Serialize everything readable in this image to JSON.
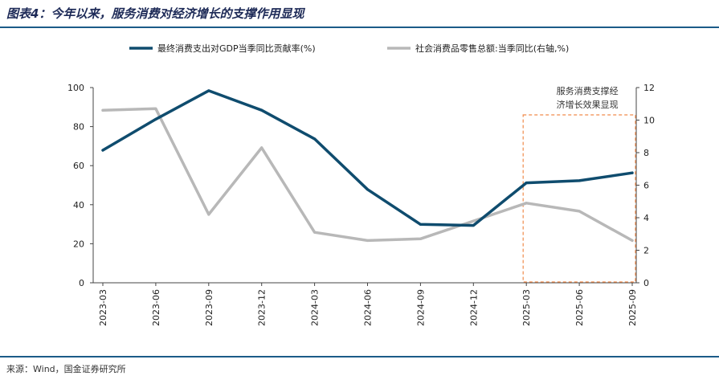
{
  "title": "图表4：今年以来，服务消费对经济增长的支撑作用显现",
  "source": "来源：Wind，国金证券研究所",
  "chart_data": {
    "type": "line",
    "categories": [
      "2023-03",
      "2023-06",
      "2023-09",
      "2023-12",
      "2024-03",
      "2024-06",
      "2024-09",
      "2024-12",
      "2025-03",
      "2025-06",
      "2025-09"
    ],
    "series": [
      {
        "name": "最终消费支出对GDP当季同比贡献率(%)",
        "axis": "left",
        "color": "#0f4c6e",
        "values": [
          67.9,
          83.8,
          98.4,
          88.4,
          73.7,
          47.8,
          29.9,
          29.4,
          51.2,
          52.3,
          56.3
        ]
      },
      {
        "name": "社会消费品零售总额:当季同比(右轴,%)",
        "axis": "right",
        "color": "#b8b8b8",
        "values": [
          10.6,
          10.7,
          4.2,
          8.3,
          3.1,
          2.6,
          2.7,
          3.8,
          4.9,
          4.4,
          2.6
        ]
      }
    ],
    "ylim_left": [
      0,
      100
    ],
    "yticks_left": [
      0,
      20,
      40,
      60,
      80,
      100
    ],
    "ylim_right": [
      0,
      12
    ],
    "yticks_right": [
      0,
      2,
      4,
      6,
      8,
      10,
      12
    ],
    "legend_position": "top",
    "grid": false,
    "annotation": {
      "lines": [
        "服务消费支撑经",
        "济增长效果显现"
      ],
      "from_category": "2025-03",
      "to_category": "2025-09",
      "box_color": "#f08a4b"
    }
  }
}
